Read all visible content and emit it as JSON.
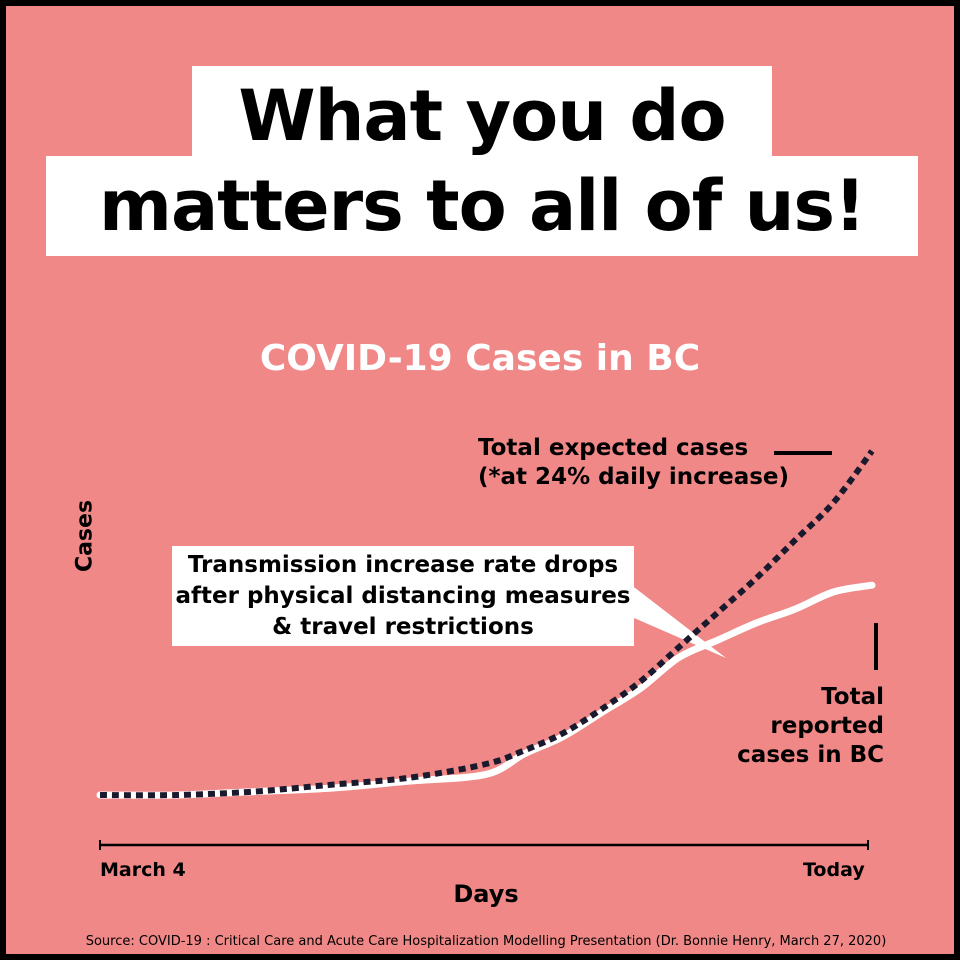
{
  "headline": {
    "line1": "What you do",
    "line2": "matters to all of us!"
  },
  "chart_data": {
    "type": "line",
    "title": "COVID-19 Cases in BC",
    "xlabel": "Days",
    "ylabel": "Cases",
    "x_tick_labels": [
      "March 4",
      "Today"
    ],
    "xlim": [
      0,
      1
    ],
    "ylim": [
      0,
      1
    ],
    "grid": false,
    "series": [
      {
        "name": "Total expected cases (*at 24% daily increase)",
        "style": "dashed",
        "color": "#1a1a2e",
        "x": [
          0.0,
          0.1,
          0.2,
          0.3,
          0.4,
          0.5,
          0.55,
          0.6,
          0.65,
          0.7,
          0.75,
          0.8,
          0.85,
          0.9,
          0.95,
          1.0
        ],
        "y": [
          0.0,
          0.0,
          0.01,
          0.03,
          0.05,
          0.09,
          0.13,
          0.18,
          0.25,
          0.33,
          0.43,
          0.53,
          0.63,
          0.74,
          0.85,
          1.0
        ]
      },
      {
        "name": "Total reported cases in BC",
        "style": "solid",
        "color": "#ffffff",
        "x": [
          0.0,
          0.1,
          0.2,
          0.3,
          0.4,
          0.5,
          0.55,
          0.6,
          0.65,
          0.7,
          0.75,
          0.8,
          0.85,
          0.9,
          0.95,
          1.0
        ],
        "y": [
          0.0,
          0.0,
          0.01,
          0.02,
          0.04,
          0.06,
          0.12,
          0.17,
          0.24,
          0.31,
          0.4,
          0.45,
          0.5,
          0.54,
          0.59,
          0.61
        ]
      }
    ],
    "annotations": {
      "expected": "Total expected cases\n(*at 24% daily increase)",
      "reported": "Total reported cases in BC",
      "callout": "Transmission increase rate drops after physical distancing measures & travel restrictions"
    }
  },
  "source": "Source: COVID-19 : Critical Care and Acute Care Hospitalization Modelling Presentation (Dr. Bonnie Henry, March 27, 2020)",
  "colors": {
    "background": "#f08888",
    "border": "#000000",
    "expected_line": "#1a1a2e",
    "reported_line": "#ffffff"
  }
}
